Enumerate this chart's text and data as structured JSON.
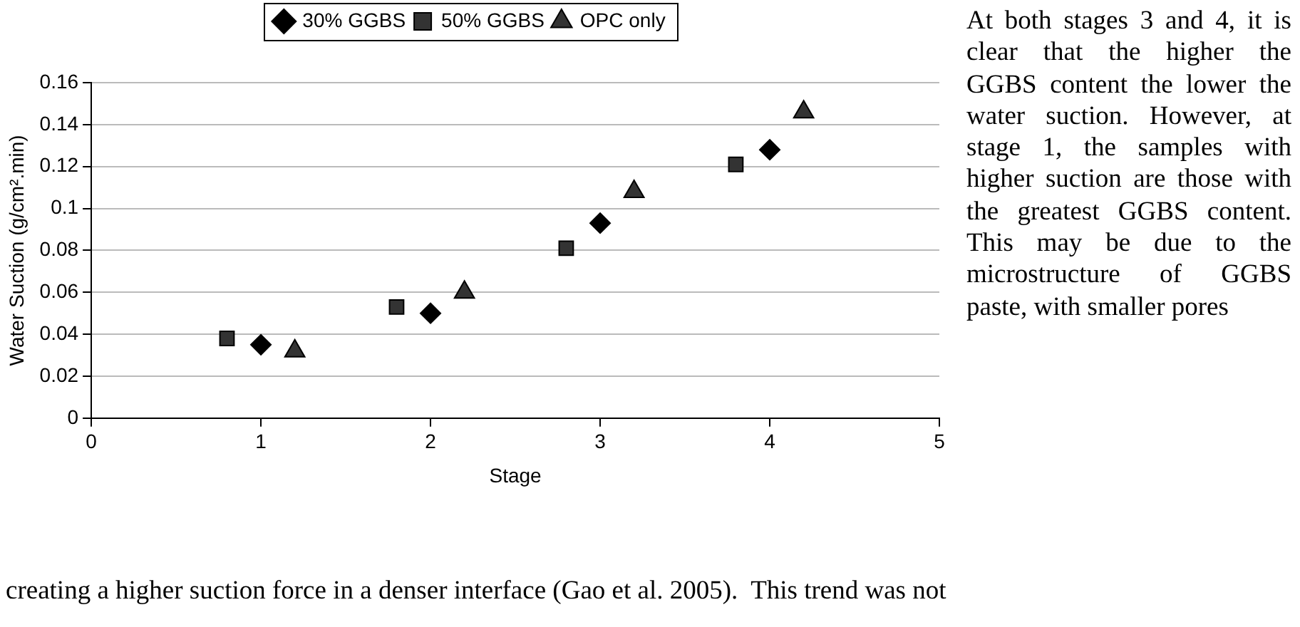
{
  "chart_data": {
    "type": "scatter",
    "xlabel": "Stage",
    "ylabel": "Water Suction (g/cm².min)",
    "xlim": [
      0,
      5
    ],
    "xticks": [
      0,
      1,
      2,
      3,
      4,
      5
    ],
    "ylim": [
      0,
      0.16
    ],
    "yticks": [
      0,
      0.02,
      0.04,
      0.06,
      0.08,
      0.1,
      0.12,
      0.14,
      0.16
    ],
    "grid": "y",
    "legend": "top",
    "series": [
      {
        "name": "30% GGBS",
        "color": "#000000",
        "marker": "diamond",
        "x": [
          1,
          2,
          3,
          4
        ],
        "values": [
          0.035,
          0.05,
          0.093,
          0.128
        ]
      },
      {
        "name": "50% GGBS",
        "color": "#333333",
        "marker": "square",
        "x": [
          0.8,
          1.8,
          2.8,
          3.8
        ],
        "values": [
          0.038,
          0.053,
          0.081,
          0.121
        ]
      },
      {
        "name": "OPC only",
        "color": "#333333",
        "marker": "triangle",
        "x": [
          1.2,
          2.2,
          3.2,
          4.2
        ],
        "values": [
          0.032,
          0.06,
          0.108,
          0.146
        ]
      }
    ],
    "annotations": [
      "At both stages 3 and 4, it is clear that the higher the GGBS content the lower the water suction. However, at stage 1, the samples with higher suction are those with the greatest GGBS content. This may be due to the microstructure of GGBS paste, with smaller pores",
      "creating a higher suction force in a denser interface (Gao et al. 2005).  This trend was not"
    ]
  }
}
